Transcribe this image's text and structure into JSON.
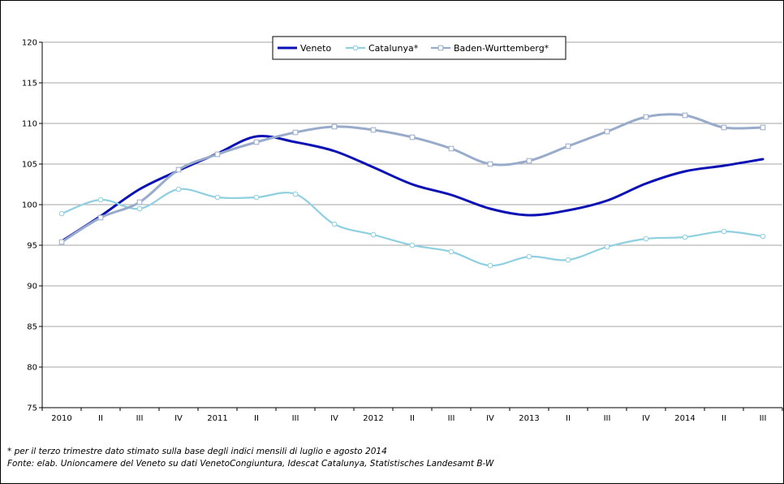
{
  "chart_data": {
    "type": "line",
    "categories": [
      "2010",
      "II",
      "III",
      "IV",
      "2011",
      "II",
      "III",
      "IV",
      "2012",
      "II",
      "III",
      "IV",
      "2013",
      "II",
      "III",
      "IV",
      "2014",
      "II",
      "III"
    ],
    "ylim": [
      75,
      120
    ],
    "yticks": [
      75,
      80,
      85,
      90,
      95,
      100,
      105,
      110,
      115,
      120
    ],
    "grid": true,
    "legend_position": "top-center",
    "series": [
      {
        "name": "Veneto",
        "color": "#0a10b4",
        "marker": "none",
        "values": [
          95.5,
          98.6,
          101.9,
          104.2,
          106.3,
          108.4,
          107.7,
          106.6,
          104.6,
          102.5,
          101.2,
          99.5,
          98.7,
          99.3,
          100.5,
          102.6,
          104.1,
          104.8,
          105.6
        ]
      },
      {
        "name": "Catalunya*",
        "color": "#8ecfe0",
        "marker": "circle",
        "values": [
          98.9,
          100.6,
          99.5,
          101.9,
          100.9,
          100.9,
          101.3,
          97.6,
          96.3,
          95.0,
          94.2,
          92.5,
          93.6,
          93.2,
          94.8,
          95.8,
          96.0,
          96.7,
          96.1
        ]
      },
      {
        "name": "Baden-Wurttemberg*",
        "color": "#99abcb",
        "marker": "square",
        "values": [
          95.4,
          98.4,
          100.3,
          104.3,
          106.2,
          107.7,
          108.9,
          109.6,
          109.2,
          108.3,
          106.9,
          105.0,
          105.4,
          107.2,
          109.0,
          110.8,
          111.0,
          109.5,
          109.5
        ]
      }
    ]
  },
  "footnotes": {
    "line1": "* per il terzo trimestre dato stimato sulla base degli indici mensili di luglio e agosto 2014",
    "line2": "Fonte: elab. Unioncamere del Veneto su dati VenetoCongiuntura, Idescat Catalunya, Statistisches Landesamt B-W"
  }
}
